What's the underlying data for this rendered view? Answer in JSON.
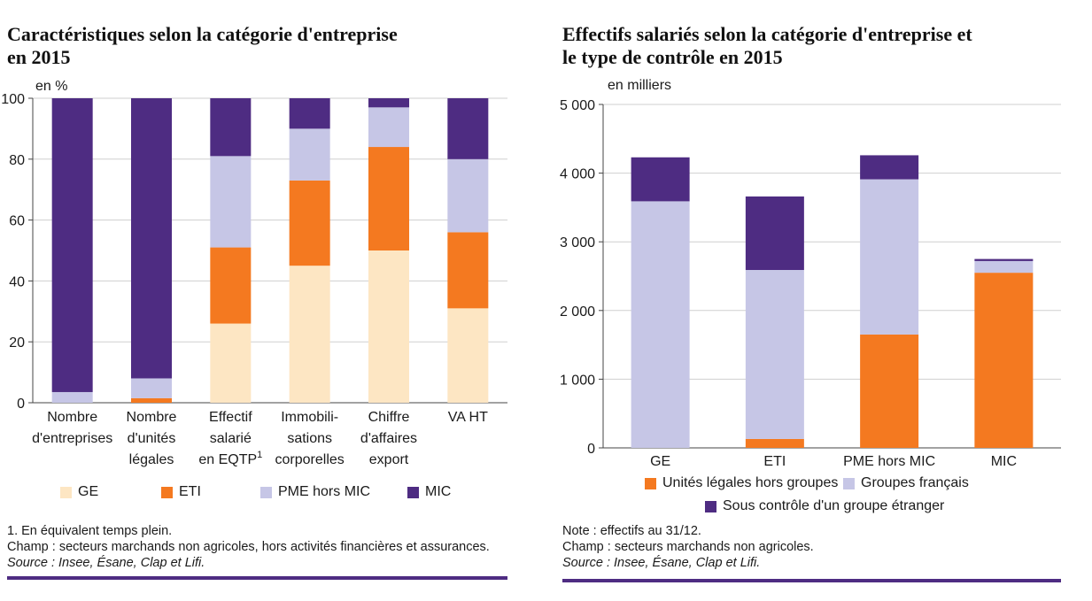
{
  "colors": {
    "GE": "#fde6c3",
    "ETI": "#f47920",
    "PME": "#c6c6e6",
    "MIC": "#4e2c82",
    "grid": "#cfcfcf",
    "axis": "#444444"
  },
  "left": {
    "title_line1": "Caractéristiques selon la catégorie d'entreprise",
    "title_line2": "en 2015",
    "note1": "1. En équivalent temps plein.",
    "champ": "Champ : secteurs marchands non agricoles, hors activités financières et assurances.",
    "source": "Source : Insee, Ésane, Clap et Lifi.",
    "legend": [
      {
        "label": "GE",
        "color_key": "GE"
      },
      {
        "label": "ETI",
        "color_key": "ETI"
      },
      {
        "label": "PME hors MIC",
        "color_key": "PME"
      },
      {
        "label": "MIC",
        "color_key": "MIC"
      }
    ]
  },
  "right": {
    "title_line1": "Effectifs salariés selon la catégorie d'entreprise et",
    "title_line2": "le type de contrôle en 2015",
    "note": "Note : effectifs au 31/12.",
    "champ": "Champ : secteurs marchands non agricoles.",
    "source": "Source : Insee, Ésane, Clap et Lifi.",
    "legend": [
      {
        "label": "Unités légales hors groupes",
        "color_key": "ETI"
      },
      {
        "label": "Groupes français",
        "color_key": "PME"
      },
      {
        "label": "Sous contrôle d'un groupe étranger",
        "color_key": "MIC"
      }
    ]
  },
  "chart_data": [
    {
      "type": "bar",
      "stacked": true,
      "title": "Caractéristiques selon la catégorie d'entreprise en 2015",
      "ylabel": "en %",
      "xlabel": "",
      "ylim": [
        0,
        100
      ],
      "yticks": [
        0,
        20,
        40,
        60,
        80,
        100
      ],
      "grid": true,
      "legend_position": "bottom",
      "categories": [
        [
          "Nombre",
          "d'entreprises"
        ],
        [
          "Nombre",
          "d'unités",
          "légales"
        ],
        [
          "Effectif",
          "salarié",
          "en EQTP"
        ],
        [
          "Immobili-",
          "sations",
          "corporelles"
        ],
        [
          "Chiffre",
          "d'affaires",
          "export"
        ],
        [
          "VA HT"
        ]
      ],
      "category_superscripts": [
        "",
        "",
        "1",
        "",
        "",
        ""
      ],
      "series": [
        {
          "name": "GE",
          "color_key": "GE",
          "values": [
            0,
            0,
            26,
            45,
            50,
            31
          ]
        },
        {
          "name": "ETI",
          "color_key": "ETI",
          "values": [
            0,
            1.5,
            25,
            28,
            34,
            25
          ]
        },
        {
          "name": "PME hors MIC",
          "color_key": "PME",
          "values": [
            3.5,
            6.5,
            30,
            17,
            13,
            24
          ]
        },
        {
          "name": "MIC",
          "color_key": "MIC",
          "values": [
            96.5,
            92,
            19,
            10,
            3,
            20
          ]
        }
      ]
    },
    {
      "type": "bar",
      "stacked": true,
      "title": "Effectifs salariés selon la catégorie d'entreprise et le type de contrôle en 2015",
      "ylabel": "en milliers",
      "xlabel": "",
      "ylim": [
        0,
        5000
      ],
      "yticks": [
        0,
        1000,
        2000,
        3000,
        4000,
        5000
      ],
      "ytick_labels": [
        "0",
        "1 000",
        "2 000",
        "3 000",
        "4 000",
        "5 000"
      ],
      "grid": true,
      "legend_position": "bottom",
      "categories": [
        [
          "GE"
        ],
        [
          "ETI"
        ],
        [
          "PME hors MIC"
        ],
        [
          "MIC"
        ]
      ],
      "series": [
        {
          "name": "Unités légales hors groupes",
          "color_key": "ETI",
          "values": [
            0,
            130,
            1650,
            2550
          ]
        },
        {
          "name": "Groupes français",
          "color_key": "PME",
          "values": [
            3590,
            2460,
            2260,
            170
          ]
        },
        {
          "name": "Sous contrôle d'un groupe étranger",
          "color_key": "MIC",
          "values": [
            640,
            1070,
            350,
            30
          ]
        }
      ]
    }
  ]
}
